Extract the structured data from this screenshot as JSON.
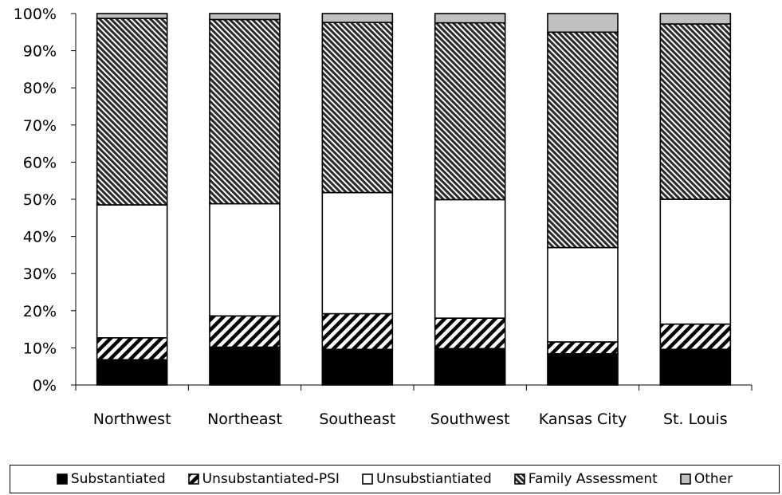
{
  "chart_data": {
    "type": "bar",
    "stacked": true,
    "percent": true,
    "categories": [
      "Northwest",
      "Northeast",
      "Southeast",
      "Southwest",
      "Kansas City",
      "St. Louis"
    ],
    "series": [
      {
        "name": "Substantiated",
        "values": [
          6.8,
          10.2,
          9.6,
          9.8,
          8.4,
          9.6
        ],
        "color": "#000000",
        "pattern": "solid"
      },
      {
        "name": "Unsubstantiated-PSI",
        "values": [
          5.9,
          8.4,
          9.6,
          8.2,
          3.2,
          6.8
        ],
        "color": "#000000",
        "pattern": "wide-hatch"
      },
      {
        "name": "Unsubstiantiated",
        "values": [
          35.8,
          30.2,
          32.6,
          31.9,
          25.4,
          33.6
        ],
        "color": "#ffffff",
        "pattern": "blank"
      },
      {
        "name": "Family Assessment",
        "values": [
          50.2,
          49.6,
          45.8,
          47.6,
          58.0,
          47.2
        ],
        "color": "#7f7f7f",
        "pattern": "dense-hatch"
      },
      {
        "name": "Other",
        "values": [
          1.3,
          1.6,
          2.4,
          2.5,
          5.0,
          2.8
        ],
        "color": "#c0c0c0",
        "pattern": "solid"
      }
    ],
    "ylim": [
      0,
      100
    ],
    "yticks": [
      "0%",
      "10%",
      "20%",
      "30%",
      "40%",
      "50%",
      "60%",
      "70%",
      "80%",
      "90%",
      "100%"
    ],
    "grid": false,
    "legend_position": "bottom"
  }
}
